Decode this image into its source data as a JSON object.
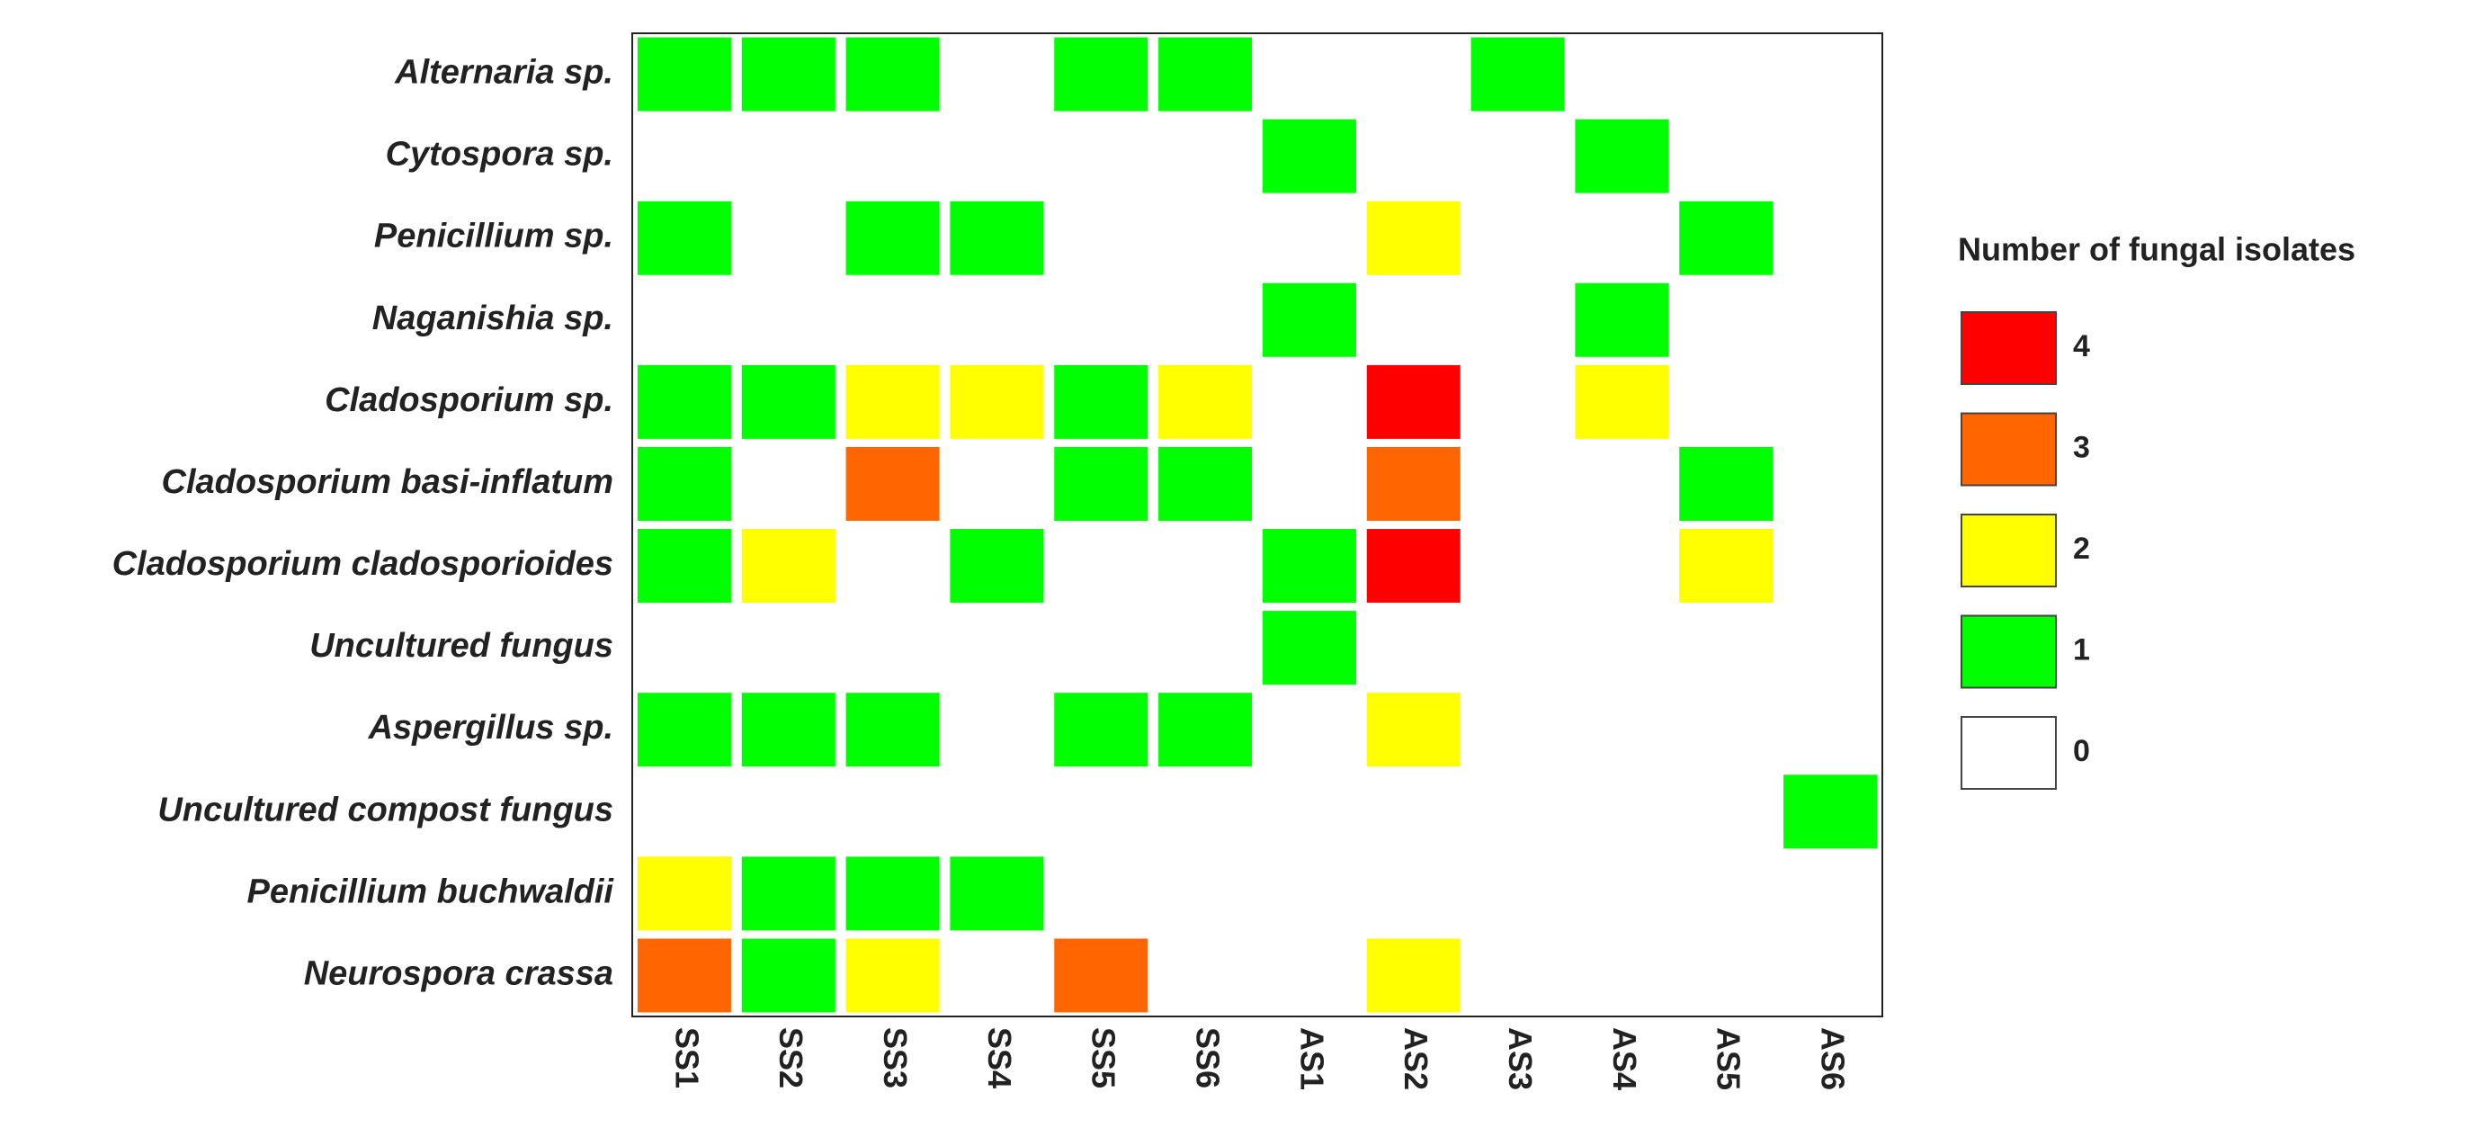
{
  "chart_data": {
    "type": "heatmap",
    "rows": [
      "Alternaria sp.",
      "Cytospora sp.",
      "Penicillium sp.",
      "Naganishia sp.",
      "Cladosporium sp.",
      "Cladosporium basi-inflatum",
      "Cladosporium cladosporioides",
      "Uncultured fungus",
      "Aspergillus sp.",
      "Uncultured compost fungus",
      "Penicillium buchwaldii",
      "Neurospora crassa"
    ],
    "columns": [
      "SS1",
      "SS2",
      "SS3",
      "SS4",
      "SS5",
      "SS6",
      "AS1",
      "AS2",
      "AS3",
      "AS4",
      "AS5",
      "AS6"
    ],
    "values": [
      [
        1,
        1,
        1,
        0,
        1,
        1,
        0,
        0,
        1,
        0,
        0,
        0
      ],
      [
        0,
        0,
        0,
        0,
        0,
        0,
        1,
        0,
        0,
        1,
        0,
        0
      ],
      [
        1,
        0,
        1,
        1,
        0,
        0,
        0,
        2,
        0,
        0,
        1,
        0
      ],
      [
        0,
        0,
        0,
        0,
        0,
        0,
        1,
        0,
        0,
        1,
        0,
        0
      ],
      [
        1,
        1,
        2,
        2,
        1,
        2,
        0,
        4,
        0,
        2,
        0,
        0
      ],
      [
        1,
        0,
        3,
        0,
        1,
        1,
        0,
        3,
        0,
        0,
        1,
        0
      ],
      [
        1,
        2,
        0,
        1,
        0,
        0,
        1,
        4,
        0,
        0,
        2,
        0
      ],
      [
        0,
        0,
        0,
        0,
        0,
        0,
        1,
        0,
        0,
        0,
        0,
        0
      ],
      [
        1,
        1,
        1,
        0,
        1,
        1,
        0,
        2,
        0,
        0,
        0,
        0
      ],
      [
        0,
        0,
        0,
        0,
        0,
        0,
        0,
        0,
        0,
        0,
        0,
        1
      ],
      [
        2,
        1,
        1,
        1,
        0,
        0,
        0,
        0,
        0,
        0,
        0,
        0
      ],
      [
        3,
        1,
        2,
        0,
        3,
        0,
        0,
        2,
        0,
        0,
        0,
        0
      ]
    ],
    "legend": {
      "title": "Number of fungal isolates",
      "values": [
        4,
        3,
        2,
        1,
        0
      ],
      "colors": [
        "#ff0000",
        "#ff6600",
        "#ffff00",
        "#00ff00",
        "#ffffff"
      ]
    }
  }
}
